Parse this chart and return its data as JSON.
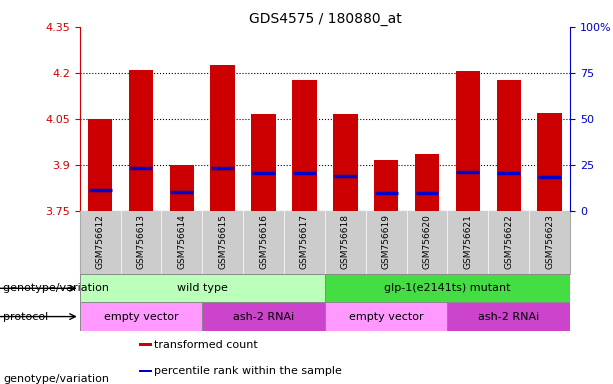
{
  "title": "GDS4575 / 180880_at",
  "samples": [
    "GSM756612",
    "GSM756613",
    "GSM756614",
    "GSM756615",
    "GSM756616",
    "GSM756617",
    "GSM756618",
    "GSM756619",
    "GSM756620",
    "GSM756621",
    "GSM756622",
    "GSM756623"
  ],
  "bar_tops": [
    4.05,
    4.21,
    3.9,
    4.225,
    4.065,
    4.175,
    4.065,
    3.915,
    3.935,
    4.205,
    4.175,
    4.07
  ],
  "bar_bottoms": [
    3.75,
    3.75,
    3.75,
    3.75,
    3.75,
    3.75,
    3.75,
    3.75,
    3.75,
    3.75,
    3.75,
    3.75
  ],
  "blue_marker_values": [
    3.818,
    3.888,
    3.812,
    3.888,
    3.873,
    3.873,
    3.862,
    3.808,
    3.808,
    3.875,
    3.873,
    3.86
  ],
  "bar_color": "#cc0000",
  "blue_color": "#0000cc",
  "ylim_left": [
    3.75,
    4.35
  ],
  "yticks_left": [
    3.75,
    3.9,
    4.05,
    4.2,
    4.35
  ],
  "ytick_labels_left": [
    "3.75",
    "3.9",
    "4.05",
    "4.2",
    "4.35"
  ],
  "ylim_right": [
    0,
    100
  ],
  "yticks_right": [
    0,
    25,
    50,
    75,
    100
  ],
  "ytick_labels_right": [
    "0",
    "25",
    "50",
    "75",
    "100%"
  ],
  "bar_width": 0.6,
  "grid_color": "#000000",
  "genotype_groups": [
    {
      "label": "wild type",
      "start": 0,
      "end": 6,
      "color": "#bbffbb"
    },
    {
      "label": "glp-1(e2141ts) mutant",
      "start": 6,
      "end": 12,
      "color": "#44dd44"
    }
  ],
  "protocol_groups": [
    {
      "label": "empty vector",
      "start": 0,
      "end": 3,
      "color": "#ff99ff"
    },
    {
      "label": "ash-2 RNAi",
      "start": 3,
      "end": 6,
      "color": "#cc44cc"
    },
    {
      "label": "empty vector",
      "start": 6,
      "end": 9,
      "color": "#ff99ff"
    },
    {
      "label": "ash-2 RNAi",
      "start": 9,
      "end": 12,
      "color": "#cc44cc"
    }
  ],
  "legend_items": [
    {
      "label": "transformed count",
      "color": "#cc0000"
    },
    {
      "label": "percentile rank within the sample",
      "color": "#0000cc"
    }
  ],
  "title_fontsize": 10,
  "tick_label_color_left": "#cc0000",
  "tick_label_color_right": "#0000cc",
  "xtick_bg_color": "#cccccc",
  "row_label_genotype": "genotype/variation",
  "row_label_protocol": "protocol",
  "row_border_color": "#888888"
}
